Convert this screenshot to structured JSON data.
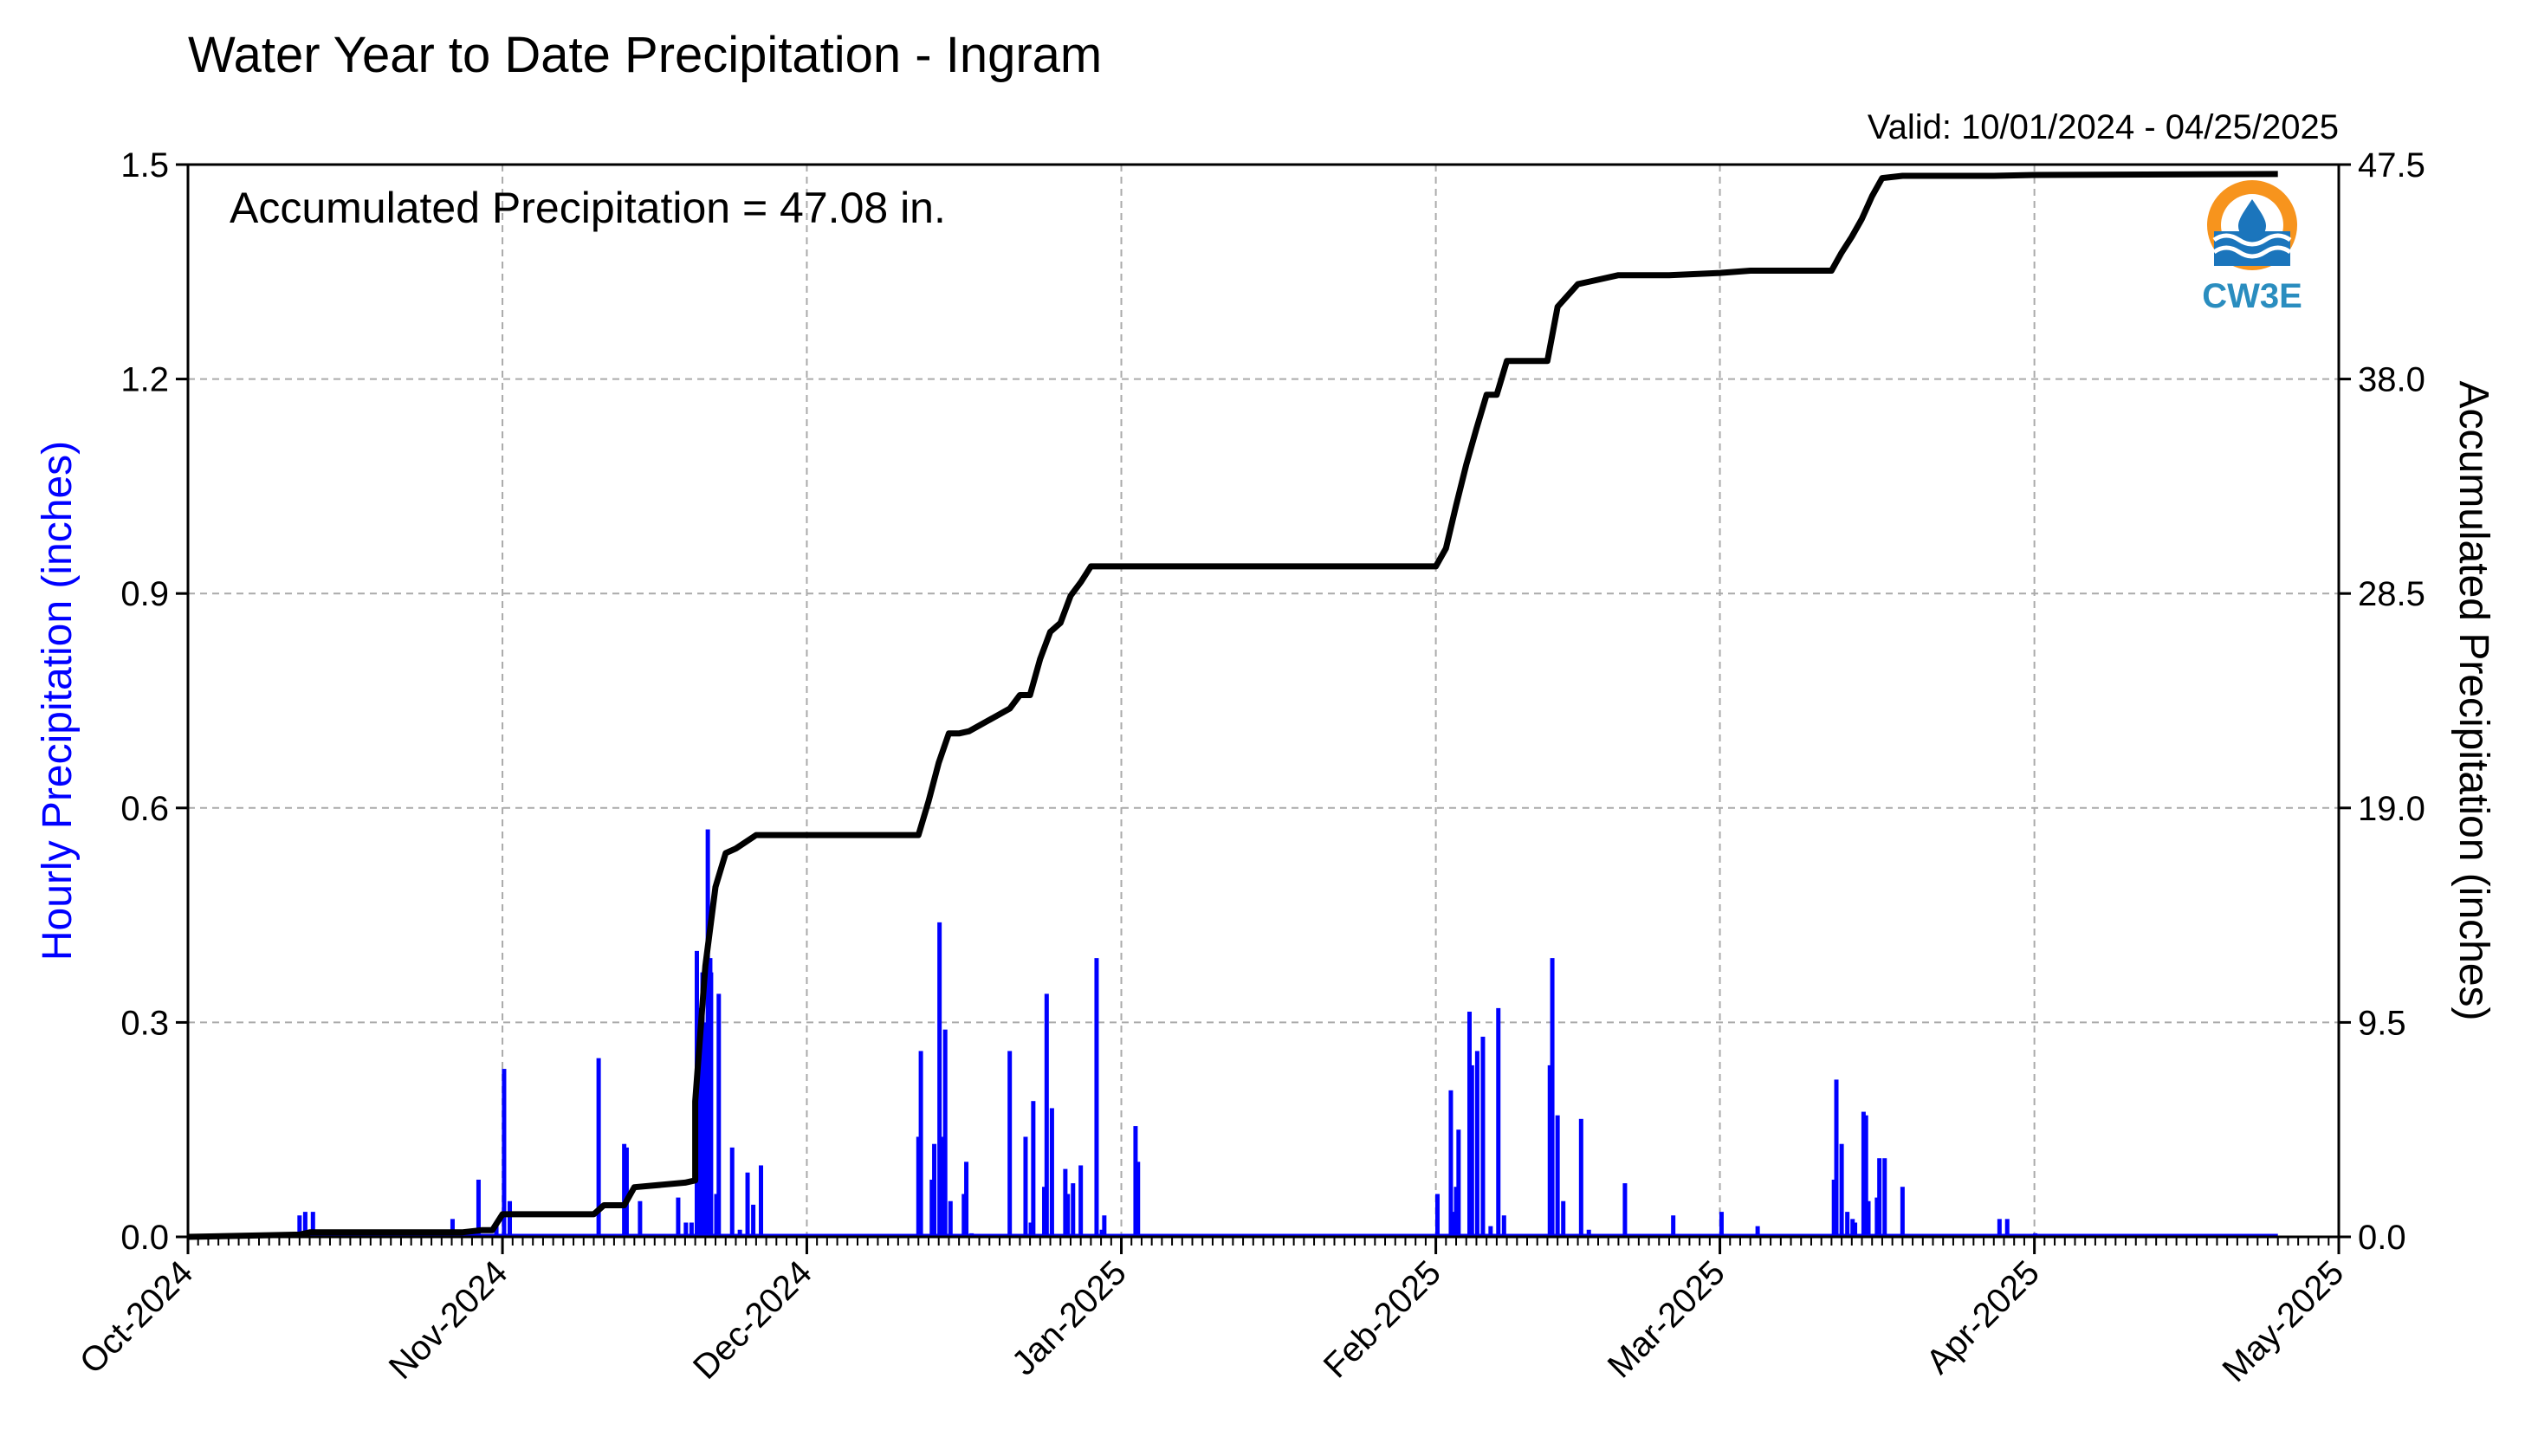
{
  "chart_data": {
    "type": "bar+line",
    "title": "Water Year to Date Precipitation - Ingram",
    "valid_label": "Valid: 10/01/2024 - 04/25/2025",
    "annotation": "Accumulated Precipitation = 47.08 in.",
    "ylabel_left": "Hourly Precipitation (inches)",
    "ylabel_right": "Accumulated Precipitation (inches)",
    "ylim_left": [
      0,
      1.5
    ],
    "ylim_right": [
      0,
      47.5
    ],
    "yticks_left": [
      "0.0",
      "0.3",
      "0.6",
      "0.9",
      "1.2",
      "1.5"
    ],
    "yticks_right": [
      "0.0",
      "9.5",
      "19.0",
      "28.5",
      "38.0",
      "47.5"
    ],
    "x_range": [
      "2024-10-01",
      "2025-05-01"
    ],
    "x_ticks": [
      {
        "date": "2024-10-01",
        "label": "Oct-2024"
      },
      {
        "date": "2024-11-01",
        "label": "Nov-2024"
      },
      {
        "date": "2024-12-01",
        "label": "Dec-2024"
      },
      {
        "date": "2025-01-01",
        "label": "Jan-2025"
      },
      {
        "date": "2025-02-01",
        "label": "Feb-2025"
      },
      {
        "date": "2025-03-01",
        "label": "Mar-2025"
      },
      {
        "date": "2025-04-01",
        "label": "Apr-2025"
      },
      {
        "date": "2025-05-01",
        "label": "May-2025"
      }
    ],
    "grid": true,
    "series": [
      {
        "kind": "bar",
        "axis": "left",
        "color": "#0000ff",
        "x": [
          "2024-10-12",
          "2024-10-12",
          "2024-10-13",
          "2024-10-27",
          "2024-10-29",
          "2024-10-31",
          "2024-11-01",
          "2024-11-01",
          "2024-11-10",
          "2024-11-13",
          "2024-11-13",
          "2024-11-14",
          "2024-11-18",
          "2024-11-19",
          "2024-11-19",
          "2024-11-20",
          "2024-11-20",
          "2024-11-20",
          "2024-11-21",
          "2024-11-21",
          "2024-11-21",
          "2024-11-21",
          "2024-11-22",
          "2024-11-22",
          "2024-11-23",
          "2024-11-24",
          "2024-11-25",
          "2024-11-25",
          "2024-11-26",
          "2024-12-12",
          "2024-12-12",
          "2024-12-13",
          "2024-12-13",
          "2024-12-14",
          "2024-12-14",
          "2024-12-14",
          "2024-12-15",
          "2024-12-16",
          "2024-12-16",
          "2024-12-17",
          "2024-12-21",
          "2024-12-22",
          "2024-12-23",
          "2024-12-23",
          "2024-12-24",
          "2024-12-24",
          "2024-12-25",
          "2024-12-26",
          "2024-12-26",
          "2024-12-27",
          "2024-12-28",
          "2024-12-29",
          "2024-12-30",
          "2024-12-30",
          "2025-01-02",
          "2025-01-02",
          "2025-02-01",
          "2025-02-02",
          "2025-02-02",
          "2025-02-03",
          "2025-02-03",
          "2025-02-04",
          "2025-02-04",
          "2025-02-05",
          "2025-02-05",
          "2025-02-06",
          "2025-02-07",
          "2025-02-07",
          "2025-02-12",
          "2025-02-12",
          "2025-02-13",
          "2025-02-13",
          "2025-02-15",
          "2025-02-16",
          "2025-02-19",
          "2025-02-24",
          "2025-03-01",
          "2025-03-04",
          "2025-03-12",
          "2025-03-12",
          "2025-03-13",
          "2025-03-13",
          "2025-03-14",
          "2025-03-14",
          "2025-03-15",
          "2025-03-15",
          "2025-03-15",
          "2025-03-16",
          "2025-03-16",
          "2025-03-17",
          "2025-03-19",
          "2025-03-28",
          "2025-03-29",
          "2025-04-01"
        ],
        "values": [
          0.03,
          0.035,
          0.035,
          0.025,
          0.08,
          0.02,
          0.235,
          0.05,
          0.25,
          0.125,
          0.13,
          0.05,
          0.055,
          0.02,
          0.02,
          0.32,
          0.4,
          0.37,
          0.39,
          0.57,
          0.3,
          0.37,
          0.34,
          0.06,
          0.125,
          0.01,
          0.09,
          0.045,
          0.1,
          0.26,
          0.14,
          0.13,
          0.08,
          0.44,
          0.29,
          0.14,
          0.05,
          0.105,
          0.06,
          0.005,
          0.26,
          0.14,
          0.19,
          0.02,
          0.34,
          0.07,
          0.18,
          0.06,
          0.095,
          0.075,
          0.1,
          0.39,
          0.03,
          0.01,
          0.105,
          0.155,
          0.06,
          0.035,
          0.205,
          0.15,
          0.07,
          0.24,
          0.315,
          0.26,
          0.28,
          0.015,
          0.32,
          0.03,
          0.39,
          0.24,
          0.17,
          0.05,
          0.165,
          0.01,
          0.075,
          0.03,
          0.035,
          0.015,
          0.22,
          0.08,
          0.13,
          0.035,
          0.02,
          0.025,
          0.05,
          0.17,
          0.175,
          0.11,
          0.055,
          0.11,
          0.07,
          0.025,
          0.025,
          0.005
        ]
      },
      {
        "kind": "line",
        "axis": "right",
        "color": "#000000",
        "x": [
          "2024-10-01",
          "2024-10-12",
          "2024-10-13",
          "2024-10-28",
          "2024-10-30",
          "2024-10-31",
          "2024-11-01",
          "2024-11-02",
          "2024-11-10",
          "2024-11-11",
          "2024-11-13",
          "2024-11-14",
          "2024-11-19",
          "2024-11-20",
          "2024-11-20",
          "2024-11-21",
          "2024-11-22",
          "2024-11-23",
          "2024-11-24",
          "2024-11-26",
          "2024-11-27",
          "2024-12-12",
          "2024-12-13",
          "2024-12-14",
          "2024-12-15",
          "2024-12-16",
          "2024-12-17",
          "2024-12-21",
          "2024-12-22",
          "2024-12-23",
          "2024-12-24",
          "2024-12-25",
          "2024-12-26",
          "2024-12-27",
          "2024-12-28",
          "2024-12-29",
          "2024-12-30",
          "2025-01-02",
          "2025-01-03",
          "2025-02-01",
          "2025-02-02",
          "2025-02-03",
          "2025-02-04",
          "2025-02-05",
          "2025-02-06",
          "2025-02-07",
          "2025-02-08",
          "2025-02-12",
          "2025-02-13",
          "2025-02-15",
          "2025-02-16",
          "2025-02-19",
          "2025-02-24",
          "2025-03-01",
          "2025-03-04",
          "2025-03-12",
          "2025-03-13",
          "2025-03-14",
          "2025-03-15",
          "2025-03-16",
          "2025-03-17",
          "2025-03-19",
          "2025-03-28",
          "2025-04-01",
          "2025-04-25"
        ],
        "values": [
          0.0,
          0.1,
          0.2,
          0.2,
          0.3,
          0.3,
          1.0,
          1.0,
          1.0,
          1.4,
          1.4,
          2.2,
          2.4,
          2.5,
          6.0,
          12.0,
          15.5,
          17.0,
          17.2,
          17.8,
          17.8,
          17.8,
          19.3,
          21.0,
          22.3,
          22.3,
          22.4,
          23.4,
          24.0,
          24.0,
          25.6,
          26.8,
          27.2,
          28.4,
          29.0,
          29.7,
          29.7,
          29.7,
          29.7,
          29.7,
          30.5,
          32.4,
          34.2,
          35.8,
          37.3,
          37.3,
          38.8,
          38.8,
          41.2,
          42.2,
          42.3,
          42.6,
          42.6,
          42.7,
          42.8,
          42.8,
          43.6,
          44.3,
          45.1,
          46.1,
          46.9,
          47.0,
          47.0,
          47.04,
          47.08
        ]
      }
    ]
  },
  "logo": {
    "text": "CW3E",
    "colors": {
      "sun": "#f7941d",
      "water": "#1b75bc",
      "text": "#2a8dbf"
    }
  }
}
